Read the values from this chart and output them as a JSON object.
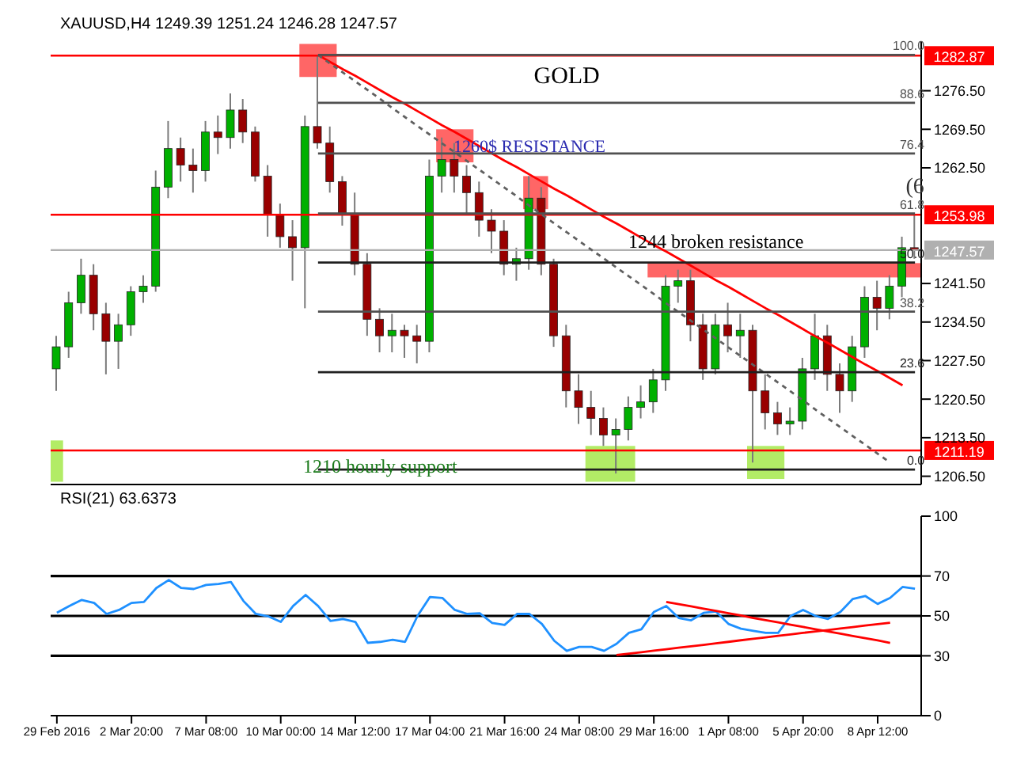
{
  "chart_data": [
    {
      "type": "candlestick",
      "title": "XAUUSD,H4  1249.39 1251.24 1246.28 1247.57",
      "tick_labels": "y",
      "categories": [
        null,
        null,
        null,
        null,
        null,
        null,
        null,
        null,
        null,
        null,
        null,
        null,
        null,
        null,
        null,
        null,
        null,
        null,
        null,
        null,
        null,
        null,
        null,
        null,
        null,
        null,
        null,
        null,
        null,
        null,
        null,
        null,
        null,
        null,
        null,
        null,
        null,
        null,
        null,
        null,
        null,
        null,
        null,
        null,
        null,
        null,
        null,
        null,
        null,
        null,
        null,
        null,
        null,
        null,
        null,
        null,
        null,
        null,
        null,
        null,
        null,
        null,
        null,
        null,
        null,
        null,
        null,
        null,
        null,
        null
      ],
      "ylim": [
        1205,
        1285.5
      ],
      "yticks": [
        {
          "value": 1206.5,
          "label": "1206.50"
        },
        {
          "value": 1213.5,
          "label": "1213.50"
        },
        {
          "value": 1220.5,
          "label": "1220.50"
        },
        {
          "value": 1227.5,
          "label": "1227.50"
        },
        {
          "value": 1234.5,
          "label": "1234.50"
        },
        {
          "value": 1241.5,
          "label": "1241.50"
        },
        {
          "value": 1262.5,
          "label": "1262.50"
        },
        {
          "value": 1269.5,
          "label": "1269.50"
        },
        {
          "value": 1276.5,
          "label": "1276.50"
        }
      ],
      "ohlc": [
        [
          1226,
          1232,
          1222,
          1230
        ],
        [
          1230,
          1240,
          1228,
          1238
        ],
        [
          1238,
          1246,
          1236,
          1243
        ],
        [
          1243,
          1245,
          1233,
          1236
        ],
        [
          1236,
          1238,
          1225,
          1231
        ],
        [
          1231,
          1236,
          1226,
          1234
        ],
        [
          1234,
          1241,
          1232,
          1240
        ],
        [
          1240,
          1243,
          1238,
          1241
        ],
        [
          1241,
          1262,
          1240,
          1259
        ],
        [
          1259,
          1271,
          1257,
          1266
        ],
        [
          1266,
          1268,
          1260,
          1263
        ],
        [
          1263,
          1266,
          1258,
          1262
        ],
        [
          1262,
          1271,
          1260,
          1269
        ],
        [
          1269,
          1272,
          1265,
          1268
        ],
        [
          1268,
          1276,
          1266,
          1273
        ],
        [
          1273,
          1275,
          1267,
          1269
        ],
        [
          1269,
          1270,
          1260,
          1261
        ],
        [
          1261,
          1263,
          1250,
          1254
        ],
        [
          1254,
          1256,
          1248,
          1250
        ],
        [
          1250,
          1253,
          1242,
          1248
        ],
        [
          1248,
          1272,
          1237,
          1270
        ],
        [
          1270,
          1282.87,
          1266,
          1267
        ],
        [
          1267,
          1270,
          1258,
          1260
        ],
        [
          1260,
          1261,
          1252,
          1254
        ],
        [
          1254,
          1258,
          1243,
          1245
        ],
        [
          1245,
          1247,
          1232,
          1235
        ],
        [
          1235,
          1237,
          1229,
          1232
        ],
        [
          1232,
          1236,
          1229,
          1233
        ],
        [
          1233,
          1234,
          1228,
          1232
        ],
        [
          1232,
          1234,
          1227,
          1231
        ],
        [
          1231,
          1264,
          1229,
          1261
        ],
        [
          1261,
          1268,
          1258,
          1264
        ],
        [
          1264,
          1267,
          1258,
          1261
        ],
        [
          1261,
          1263,
          1254,
          1258
        ],
        [
          1258,
          1260,
          1250,
          1253
        ],
        [
          1253,
          1255,
          1247,
          1251
        ],
        [
          1251,
          1253,
          1243,
          1245
        ],
        [
          1245,
          1248,
          1242,
          1246
        ],
        [
          1246,
          1261,
          1244,
          1257
        ],
        [
          1257,
          1259,
          1243,
          1245
        ],
        [
          1245,
          1246,
          1230,
          1232
        ],
        [
          1232,
          1234,
          1219,
          1222
        ],
        [
          1222,
          1225,
          1216,
          1219
        ],
        [
          1219,
          1222,
          1214,
          1217
        ],
        [
          1217,
          1219,
          1212,
          1214
        ],
        [
          1214,
          1217,
          1207,
          1215
        ],
        [
          1215,
          1221,
          1213,
          1219
        ],
        [
          1219,
          1223,
          1217,
          1220
        ],
        [
          1220,
          1226,
          1218,
          1224
        ],
        [
          1224,
          1243,
          1222,
          1241
        ],
        [
          1241,
          1244,
          1238,
          1242
        ],
        [
          1242,
          1244,
          1231,
          1234
        ],
        [
          1234,
          1236,
          1224,
          1226
        ],
        [
          1226,
          1236,
          1225,
          1234
        ],
        [
          1234,
          1238,
          1229,
          1232
        ],
        [
          1232,
          1236,
          1228,
          1233
        ],
        [
          1233,
          1234,
          1209,
          1222
        ],
        [
          1222,
          1225,
          1215,
          1218
        ],
        [
          1218,
          1220,
          1214,
          1216
        ],
        [
          1216,
          1219,
          1214,
          1216.5
        ],
        [
          1216.5,
          1228,
          1215,
          1226
        ],
        [
          1226,
          1236,
          1224,
          1232
        ],
        [
          1232,
          1234,
          1222,
          1225
        ],
        [
          1225,
          1227,
          1218,
          1222
        ],
        [
          1222,
          1232,
          1220,
          1230
        ],
        [
          1230,
          1241,
          1228,
          1239
        ],
        [
          1239,
          1242,
          1233,
          1237
        ],
        [
          1237,
          1243,
          1235,
          1241
        ],
        [
          1241,
          1250,
          1239,
          1248
        ],
        [
          1248,
          1254,
          1246,
          1247.57
        ]
      ],
      "colors": [
        "#00b000",
        "#00b000",
        "#00b000",
        "#990000",
        "#990000",
        "#00b000",
        "#00b000",
        "#00b000",
        "#00b000",
        "#00b000",
        "#990000",
        "#990000",
        "#00b000",
        "#990000",
        "#00b000",
        "#990000",
        "#990000",
        "#990000",
        "#990000",
        "#990000",
        "#00b000",
        "#990000",
        "#990000",
        "#990000",
        "#990000",
        "#990000",
        "#990000",
        "#00b000",
        "#990000",
        "#990000",
        "#00b000",
        "#00b000",
        "#990000",
        "#990000",
        "#990000",
        "#990000",
        "#990000",
        "#00b000",
        "#00b000",
        "#990000",
        "#990000",
        "#990000",
        "#990000",
        "#990000",
        "#990000",
        "#00b000",
        "#00b000",
        "#00b000",
        "#00b000",
        "#00b000",
        "#00b000",
        "#990000",
        "#990000",
        "#00b000",
        "#990000",
        "#00b000",
        "#990000",
        "#990000",
        "#990000",
        "#00b000",
        "#00b000",
        "#00b000",
        "#990000",
        "#990000",
        "#00b000",
        "#00b000",
        "#990000",
        "#00b000",
        "#00b000",
        "#990000"
      ],
      "series": [
        {
          "type": "line",
          "color": "#ff0000",
          "values": [
            null,
            null,
            null,
            null,
            null,
            null,
            null,
            null,
            null,
            null,
            null,
            null,
            null,
            null,
            null,
            null,
            null,
            null,
            null,
            null,
            null,
            1283,
            1281.7,
            1280.4,
            1279.2,
            1277.9,
            1276.6,
            1275.3,
            1274.1,
            1272.8,
            1271.5,
            1270.2,
            1269.0,
            1267.7,
            1266.4,
            1265.1,
            1263.8,
            1262.6,
            1261.3,
            1260.0,
            1258.7,
            1257.5,
            1256.2,
            1254.9,
            1253.6,
            1252.4,
            1251.1,
            1249.8,
            1248.5,
            1247.3,
            1246.0,
            1244.7,
            1243.4,
            1242.1,
            1240.9,
            1239.6,
            1238.3,
            1237.0,
            1235.8,
            1234.5,
            1233.2,
            1231.9,
            1230.7,
            1229.4,
            1228.1,
            1226.8,
            1225.6,
            1224.3,
            1223.0,
            null
          ]
        },
        {
          "type": "line",
          "color": "#606060",
          "line_style": "dashed",
          "values": [
            null,
            null,
            null,
            null,
            null,
            null,
            null,
            null,
            null,
            null,
            null,
            null,
            null,
            null,
            null,
            null,
            null,
            null,
            null,
            null,
            null,
            1283,
            1281.4,
            1279.8,
            1278.2,
            1276.6,
            1275.0,
            1273.3,
            1271.7,
            1270.1,
            1268.5,
            1266.9,
            1265.3,
            1263.7,
            1262.1,
            1260.5,
            1258.9,
            1257.3,
            1255.6,
            1254.0,
            1252.4,
            1250.8,
            1249.2,
            1247.6,
            1246.0,
            1244.4,
            1242.8,
            1241.2,
            1239.6,
            1237.9,
            1236.3,
            1234.7,
            1233.1,
            1231.5,
            1229.9,
            1228.3,
            1226.7,
            1225.1,
            1223.5,
            1221.9,
            1220.3,
            1218.6,
            1217.0,
            1215.4,
            1213.8,
            1212.2,
            1210.6,
            1209.0,
            null,
            null
          ]
        },
        {
          "type": "line",
          "name": "100.0",
          "color": "#505050",
          "values": [
            null,
            null,
            null,
            null,
            null,
            null,
            null,
            null,
            null,
            null,
            null,
            null,
            null,
            null,
            null,
            null,
            null,
            null,
            null,
            null,
            null,
            1283,
            1283,
            1283,
            1283,
            1283,
            1283,
            1283,
            1283,
            1283,
            1283,
            1283,
            1283,
            1283,
            1283,
            1283,
            1283,
            1283,
            1283,
            1283,
            1283,
            1283,
            1283,
            1283,
            1283,
            1283,
            1283,
            1283,
            1283,
            1283,
            1283,
            1283,
            1283,
            1283,
            1283,
            1283,
            1283,
            1283,
            1283,
            1283,
            1283,
            1283,
            1283,
            1283,
            1283,
            1283,
            1283,
            1283,
            1283,
            1283
          ]
        },
        {
          "type": "line",
          "name": "88.6",
          "color": "#505050",
          "values": [
            null,
            null,
            null,
            null,
            null,
            null,
            null,
            null,
            null,
            null,
            null,
            null,
            null,
            null,
            null,
            null,
            null,
            null,
            null,
            null,
            null,
            1274.3,
            1274.3,
            1274.3,
            1274.3,
            1274.3,
            1274.3,
            1274.3,
            1274.3,
            1274.3,
            1274.3,
            1274.3,
            1274.3,
            1274.3,
            1274.3,
            1274.3,
            1274.3,
            1274.3,
            1274.3,
            1274.3,
            1274.3,
            1274.3,
            1274.3,
            1274.3,
            1274.3,
            1274.3,
            1274.3,
            1274.3,
            1274.3,
            1274.3,
            1274.3,
            1274.3,
            1274.3,
            1274.3,
            1274.3,
            1274.3,
            1274.3,
            1274.3,
            1274.3,
            1274.3,
            1274.3,
            1274.3,
            1274.3,
            1274.3,
            1274.3,
            1274.3,
            1274.3,
            1274.3,
            1274.3,
            1274.3
          ]
        },
        {
          "type": "line",
          "name": "76.4",
          "color": "#505050",
          "values": [
            null,
            null,
            null,
            null,
            null,
            null,
            null,
            null,
            null,
            null,
            null,
            null,
            null,
            null,
            null,
            null,
            null,
            null,
            null,
            null,
            null,
            1265.1,
            1265.1,
            1265.1,
            1265.1,
            1265.1,
            1265.1,
            1265.1,
            1265.1,
            1265.1,
            1265.1,
            1265.1,
            1265.1,
            1265.1,
            1265.1,
            1265.1,
            1265.1,
            1265.1,
            1265.1,
            1265.1,
            1265.1,
            1265.1,
            1265.1,
            1265.1,
            1265.1,
            1265.1,
            1265.1,
            1265.1,
            1265.1,
            1265.1,
            1265.1,
            1265.1,
            1265.1,
            1265.1,
            1265.1,
            1265.1,
            1265.1,
            1265.1,
            1265.1,
            1265.1,
            1265.1,
            1265.1,
            1265.1,
            1265.1,
            1265.1,
            1265.1,
            1265.1,
            1265.1,
            1265.1,
            1265.1
          ]
        },
        {
          "type": "line",
          "name": "61.8",
          "color": "#505050",
          "values": [
            null,
            null,
            null,
            null,
            null,
            null,
            null,
            null,
            null,
            null,
            null,
            null,
            null,
            null,
            null,
            null,
            null,
            null,
            null,
            null,
            null,
            1254.2,
            1254.2,
            1254.2,
            1254.2,
            1254.2,
            1254.2,
            1254.2,
            1254.2,
            1254.2,
            1254.2,
            1254.2,
            1254.2,
            1254.2,
            1254.2,
            1254.2,
            1254.2,
            1254.2,
            1254.2,
            1254.2,
            1254.2,
            1254.2,
            1254.2,
            1254.2,
            1254.2,
            1254.2,
            1254.2,
            1254.2,
            1254.2,
            1254.2,
            1254.2,
            1254.2,
            1254.2,
            1254.2,
            1254.2,
            1254.2,
            1254.2,
            1254.2,
            1254.2,
            1254.2,
            1254.2,
            1254.2,
            1254.2,
            1254.2,
            1254.2,
            1254.2,
            1254.2,
            1254.2,
            1254.2,
            1254.2
          ]
        },
        {
          "type": "line",
          "name": "50.0",
          "color": "#202020",
          "values": [
            null,
            null,
            null,
            null,
            null,
            null,
            null,
            null,
            null,
            null,
            null,
            null,
            null,
            null,
            null,
            null,
            null,
            null,
            null,
            null,
            null,
            1245.3,
            1245.3,
            1245.3,
            1245.3,
            1245.3,
            1245.3,
            1245.3,
            1245.3,
            1245.3,
            1245.3,
            1245.3,
            1245.3,
            1245.3,
            1245.3,
            1245.3,
            1245.3,
            1245.3,
            1245.3,
            1245.3,
            1245.3,
            1245.3,
            1245.3,
            1245.3,
            1245.3,
            1245.3,
            1245.3,
            1245.3,
            1245.3,
            1245.3,
            1245.3,
            1245.3,
            1245.3,
            1245.3,
            1245.3,
            1245.3,
            1245.3,
            1245.3,
            1245.3,
            1245.3,
            1245.3,
            1245.3,
            1245.3,
            1245.3,
            1245.3,
            1245.3,
            1245.3,
            1245.3,
            1245.3,
            1245.3
          ]
        },
        {
          "type": "line",
          "name": "38.2",
          "color": "#505050",
          "values": [
            null,
            null,
            null,
            null,
            null,
            null,
            null,
            null,
            null,
            null,
            null,
            null,
            null,
            null,
            null,
            null,
            null,
            null,
            null,
            null,
            null,
            1236.4,
            1236.4,
            1236.4,
            1236.4,
            1236.4,
            1236.4,
            1236.4,
            1236.4,
            1236.4,
            1236.4,
            1236.4,
            1236.4,
            1236.4,
            1236.4,
            1236.4,
            1236.4,
            1236.4,
            1236.4,
            1236.4,
            1236.4,
            1236.4,
            1236.4,
            1236.4,
            1236.4,
            1236.4,
            1236.4,
            1236.4,
            1236.4,
            1236.4,
            1236.4,
            1236.4,
            1236.4,
            1236.4,
            1236.4,
            1236.4,
            1236.4,
            1236.4,
            1236.4,
            1236.4,
            1236.4,
            1236.4,
            1236.4,
            1236.4,
            1236.4,
            1236.4,
            1236.4,
            1236.4,
            1236.4,
            1236.4
          ]
        },
        {
          "type": "line",
          "name": "23.6",
          "color": "#202020",
          "values": [
            null,
            null,
            null,
            null,
            null,
            null,
            null,
            null,
            null,
            null,
            null,
            null,
            null,
            null,
            null,
            null,
            null,
            null,
            null,
            null,
            null,
            1225.4,
            1225.4,
            1225.4,
            1225.4,
            1225.4,
            1225.4,
            1225.4,
            1225.4,
            1225.4,
            1225.4,
            1225.4,
            1225.4,
            1225.4,
            1225.4,
            1225.4,
            1225.4,
            1225.4,
            1225.4,
            1225.4,
            1225.4,
            1225.4,
            1225.4,
            1225.4,
            1225.4,
            1225.4,
            1225.4,
            1225.4,
            1225.4,
            1225.4,
            1225.4,
            1225.4,
            1225.4,
            1225.4,
            1225.4,
            1225.4,
            1225.4,
            1225.4,
            1225.4,
            1225.4,
            1225.4,
            1225.4,
            1225.4,
            1225.4,
            1225.4,
            1225.4,
            1225.4,
            1225.4,
            1225.4,
            1225.4
          ]
        },
        {
          "type": "line",
          "name": "0.0",
          "color": "#202020",
          "values": [
            null,
            null,
            null,
            null,
            null,
            null,
            null,
            null,
            null,
            null,
            null,
            null,
            null,
            null,
            null,
            null,
            null,
            null,
            null,
            null,
            null,
            1207.7,
            1207.7,
            1207.7,
            1207.7,
            1207.7,
            1207.7,
            1207.7,
            1207.7,
            1207.7,
            1207.7,
            1207.7,
            1207.7,
            1207.7,
            1207.7,
            1207.7,
            1207.7,
            1207.7,
            1207.7,
            1207.7,
            1207.7,
            1207.7,
            1207.7,
            1207.7,
            1207.7,
            1207.7,
            1207.7,
            1207.7,
            1207.7,
            1207.7,
            1207.7,
            1207.7,
            1207.7,
            1207.7,
            1207.7,
            1207.7,
            1207.7,
            1207.7,
            1207.7,
            1207.7,
            1207.7,
            1207.7,
            1207.7,
            1207.7,
            1207.7,
            1207.7,
            1207.7,
            1207.7,
            1207.7,
            1207.7
          ]
        }
      ],
      "ref_lines": [
        {
          "axis": "y",
          "value": 1282.87,
          "label": "1282.87",
          "color": "#ff0000"
        },
        {
          "axis": "y",
          "value": 1253.98,
          "label": "1253.98",
          "color": "#ff0000"
        },
        {
          "axis": "y",
          "value": 1211.19,
          "label": "1211.19",
          "color": "#ff0000"
        },
        {
          "axis": "y",
          "value": 1247.57,
          "label": "1247.57",
          "color": "#b0b0b0"
        }
      ],
      "annotations": [
        "GOLD",
        "1260$ RESISTANCE",
        "(6",
        "1244 broken resistance",
        "1210  hourly support"
      ]
    },
    {
      "type": "line",
      "title": "RSI(21) 63.6373",
      "categories": [
        "29 Feb 2016",
        null,
        null,
        null,
        null,
        null,
        "2 Mar 20:00",
        null,
        null,
        null,
        null,
        null,
        "7 Mar 08:00",
        null,
        null,
        null,
        null,
        null,
        "10 Mar 00:00",
        null,
        null,
        null,
        null,
        null,
        "14 Mar 12:00",
        null,
        null,
        null,
        null,
        null,
        "17 Mar 04:00",
        null,
        null,
        null,
        null,
        null,
        "21 Mar 16:00",
        null,
        null,
        null,
        null,
        null,
        "24 Mar 08:00",
        null,
        null,
        null,
        null,
        null,
        "29 Mar 16:00",
        null,
        null,
        null,
        null,
        null,
        "1 Apr 08:00",
        null,
        null,
        null,
        null,
        null,
        "5 Apr 20:00",
        null,
        null,
        null,
        null,
        null,
        "8 Apr 12:00",
        null,
        null,
        null
      ],
      "ylim": [
        0,
        100
      ],
      "yticks": [
        0,
        30,
        50,
        70,
        100
      ],
      "ref_lines": [
        {
          "axis": "y",
          "value": 70,
          "color": "#000000"
        },
        {
          "axis": "y",
          "value": 50,
          "color": "#000000"
        },
        {
          "axis": "y",
          "value": 30,
          "color": "#000000"
        }
      ],
      "series": [
        {
          "type": "line",
          "color": "#1e90ff",
          "values": [
            51.6,
            55,
            58,
            56.5,
            51,
            53,
            56.5,
            57,
            64,
            68,
            64,
            63.5,
            65.5,
            66,
            67,
            57.5,
            51,
            49.8,
            47,
            55,
            60.5,
            55,
            47.5,
            48.5,
            47,
            36.5,
            37,
            38,
            37,
            50,
            59.5,
            59,
            53,
            51,
            51.3,
            46.5,
            45.5,
            51,
            51,
            46,
            37.5,
            32.5,
            34.5,
            34.5,
            32.5,
            36,
            41.5,
            43.3,
            52,
            55,
            49,
            47.8,
            51.5,
            52.2,
            46,
            43.6,
            42.5,
            41.5,
            41.5,
            50,
            53,
            50,
            48.5,
            52,
            58.5,
            60,
            56,
            59,
            64.5,
            63.6
          ]
        },
        {
          "type": "line",
          "color": "#ff0000",
          "values": [
            null,
            null,
            null,
            null,
            null,
            null,
            null,
            null,
            null,
            null,
            null,
            null,
            null,
            null,
            null,
            null,
            null,
            null,
            null,
            null,
            null,
            null,
            null,
            null,
            null,
            null,
            null,
            null,
            null,
            null,
            null,
            null,
            null,
            null,
            null,
            null,
            null,
            null,
            null,
            null,
            null,
            null,
            null,
            null,
            null,
            null,
            null,
            null,
            null,
            57.0,
            55.9,
            54.8,
            53.6,
            52.5,
            51.3,
            50.2,
            49.0,
            47.9,
            46.8,
            45.6,
            44.5,
            43.3,
            42.2,
            41.1,
            39.9,
            38.8,
            37.7,
            36.5,
            null,
            null
          ]
        },
        {
          "type": "line",
          "color": "#ff0000",
          "values": [
            null,
            null,
            null,
            null,
            null,
            null,
            null,
            null,
            null,
            null,
            null,
            null,
            null,
            null,
            null,
            null,
            null,
            null,
            null,
            null,
            null,
            null,
            null,
            null,
            null,
            null,
            null,
            null,
            null,
            null,
            null,
            null,
            null,
            null,
            null,
            null,
            null,
            null,
            null,
            null,
            null,
            null,
            null,
            null,
            null,
            30.4,
            31.1,
            31.8,
            32.6,
            33.3,
            34.1,
            34.8,
            35.5,
            36.3,
            37.0,
            37.8,
            38.5,
            39.2,
            40.0,
            40.7,
            41.5,
            42.2,
            42.9,
            43.7,
            44.4,
            45.2,
            45.9,
            46.6,
            null,
            null
          ]
        }
      ]
    }
  ]
}
